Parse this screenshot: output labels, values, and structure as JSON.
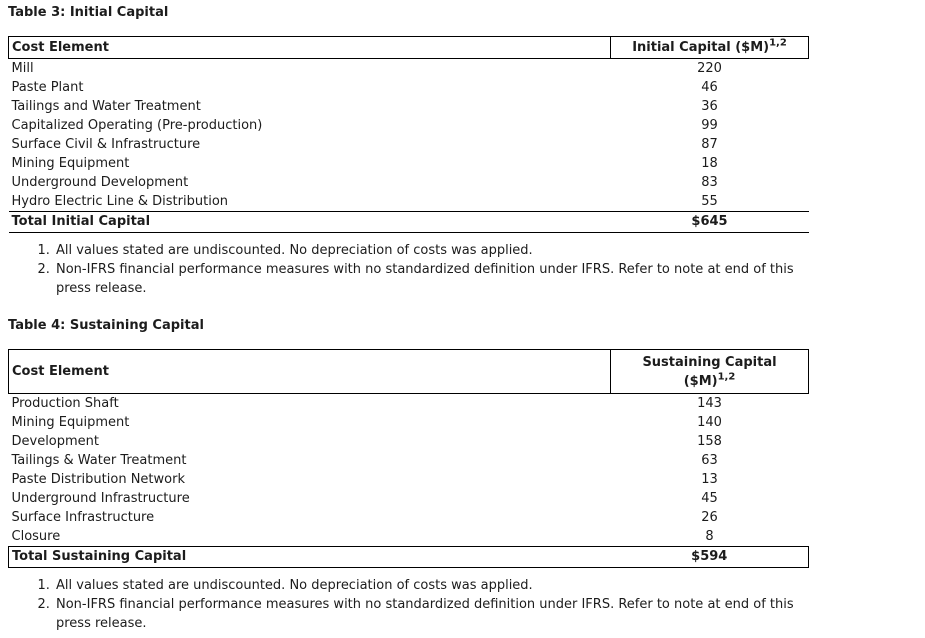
{
  "page": {
    "background": "#ffffff",
    "text_color": "#1c1c1c",
    "border_color": "#000000"
  },
  "table3": {
    "title": "Table 3: Initial Capital",
    "header": {
      "cost_element": "Cost Element",
      "value_label": "Initial Capital ($M)",
      "value_sup": "1,2"
    },
    "rows": [
      {
        "label": "Mill",
        "value": "220"
      },
      {
        "label": "Paste Plant",
        "value": "46"
      },
      {
        "label": "Tailings and Water Treatment",
        "value": "36"
      },
      {
        "label": "Capitalized Operating (Pre-production)",
        "value": "99"
      },
      {
        "label": "Surface Civil & Infrastructure",
        "value": "87"
      },
      {
        "label": "Mining Equipment",
        "value": "18"
      },
      {
        "label": "Underground Development",
        "value": "83"
      },
      {
        "label": "Hydro Electric Line & Distribution",
        "value": "55"
      }
    ],
    "total": {
      "label": "Total Initial Capital",
      "value": "$645"
    },
    "notes": [
      "All values stated are undiscounted. No depreciation of costs was applied.",
      "Non-IFRS financial performance measures with no standardized definition under IFRS. Refer to note at end of this press release."
    ]
  },
  "table4": {
    "title": "Table 4: Sustaining Capital",
    "header": {
      "cost_element": "Cost Element",
      "value_label_line1": "Sustaining Capital",
      "value_label_line2": "($M)",
      "value_sup": "1,2"
    },
    "rows": [
      {
        "label": "Production Shaft",
        "value": "143"
      },
      {
        "label": "Mining Equipment",
        "value": "140"
      },
      {
        "label": "Development",
        "value": "158"
      },
      {
        "label": "Tailings & Water Treatment",
        "value": "63"
      },
      {
        "label": "Paste Distribution Network",
        "value": "13"
      },
      {
        "label": "Underground Infrastructure",
        "value": "45"
      },
      {
        "label": "Surface Infrastructure",
        "value": "26"
      },
      {
        "label": "Closure",
        "value": "8"
      }
    ],
    "total": {
      "label": "Total Sustaining Capital",
      "value": "$594"
    },
    "notes": [
      "All values stated are undiscounted. No depreciation of costs was applied.",
      "Non-IFRS financial performance measures with no standardized definition under IFRS. Refer to note at end of this press release."
    ]
  }
}
